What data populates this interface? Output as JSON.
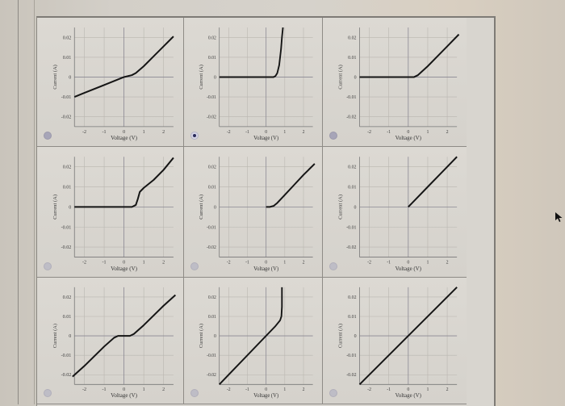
{
  "question": {
    "prompt": "",
    "option_count": 9,
    "selected_index": 1
  },
  "axes": {
    "xlabel": "Voltage (V)",
    "ylabel": "Current (A)",
    "xticks": [
      "-2",
      "-1",
      "0",
      "1",
      "2"
    ],
    "yticks": [
      "0.02",
      "0.01",
      "0",
      "-0.01",
      "-0.02"
    ]
  },
  "options": [
    {
      "index": 0,
      "selected": false,
      "description": "Ohmic negative branch, knee near 0.4V, steeper positive slope"
    },
    {
      "index": 1,
      "selected": true,
      "description": "Exponential diode, sharp rise at ~0.8V"
    },
    {
      "index": 2,
      "selected": false,
      "description": "Zero below ~0.4V, then linear"
    },
    {
      "index": 3,
      "selected": false,
      "description": "Zero until ~0.6V, S-bump, then linear"
    },
    {
      "index": 4,
      "selected": false,
      "description": "Starts at V=0, knee, then linear"
    },
    {
      "index": 5,
      "selected": false,
      "description": "Starts at V=0, straight line"
    },
    {
      "index": 6,
      "selected": false,
      "description": "Linear with flat plateau between -0.4V and 0.4V"
    },
    {
      "index": 7,
      "selected": false,
      "description": "Linear through origin, vertical at ~0.85V"
    },
    {
      "index": 8,
      "selected": false,
      "description": "Straight line through origin"
    }
  ],
  "chart_data": [
    {
      "type": "line",
      "title": "",
      "xlabel": "Voltage (V)",
      "ylabel": "Current (A)",
      "xlim": [
        -2.5,
        2.5
      ],
      "ylim": [
        -0.025,
        0.025
      ],
      "grid": true,
      "x": [
        -2.5,
        -2,
        -1,
        0,
        0.4,
        0.6,
        1,
        1.5,
        2,
        2.5
      ],
      "y": [
        -0.01,
        -0.008,
        -0.004,
        0,
        0.001,
        0.002,
        0.0055,
        0.0105,
        0.0155,
        0.0205
      ]
    },
    {
      "type": "line",
      "title": "",
      "xlabel": "Voltage (V)",
      "ylabel": "Current (A)",
      "xlim": [
        -2.5,
        2.5
      ],
      "ylim": [
        -0.025,
        0.025
      ],
      "grid": true,
      "x": [
        -2.5,
        -1,
        0,
        0.4,
        0.5,
        0.6,
        0.7,
        0.8,
        0.85,
        0.9
      ],
      "y": [
        0,
        0,
        0,
        0,
        0.0005,
        0.002,
        0.006,
        0.014,
        0.02,
        0.025
      ]
    },
    {
      "type": "line",
      "title": "",
      "xlabel": "Voltage (V)",
      "ylabel": "Current (A)",
      "xlim": [
        -2.5,
        2.5
      ],
      "ylim": [
        -0.025,
        0.025
      ],
      "grid": true,
      "x": [
        -2.5,
        -1,
        0,
        0.3,
        0.5,
        1,
        1.5,
        2,
        2.6
      ],
      "y": [
        0,
        0,
        0,
        0,
        0.001,
        0.0055,
        0.0105,
        0.0155,
        0.0215
      ]
    },
    {
      "type": "line",
      "title": "",
      "xlabel": "Voltage (V)",
      "ylabel": "Current (A)",
      "xlim": [
        -2.5,
        2.5
      ],
      "ylim": [
        -0.025,
        0.025
      ],
      "grid": true,
      "x": [
        -2.5,
        -1,
        0,
        0.4,
        0.6,
        0.7,
        0.8,
        1,
        1.5,
        2,
        2.5
      ],
      "y": [
        0,
        0,
        0,
        0,
        0.001,
        0.004,
        0.0075,
        0.0095,
        0.0135,
        0.0185,
        0.0245
      ]
    },
    {
      "type": "line",
      "title": "",
      "xlabel": "Voltage (V)",
      "ylabel": "Current (A)",
      "xlim": [
        -2.5,
        2.5
      ],
      "ylim": [
        -0.025,
        0.025
      ],
      "grid": true,
      "x": [
        0,
        0.2,
        0.4,
        0.6,
        1,
        1.5,
        2,
        2.6
      ],
      "y": [
        0,
        0,
        0.0005,
        0.002,
        0.006,
        0.011,
        0.016,
        0.0215
      ]
    },
    {
      "type": "line",
      "title": "",
      "xlabel": "Voltage (V)",
      "ylabel": "Current (A)",
      "xlim": [
        -2.5,
        2.5
      ],
      "ylim": [
        -0.025,
        0.025
      ],
      "grid": true,
      "x": [
        0,
        1,
        2,
        2.5
      ],
      "y": [
        0,
        0.01,
        0.02,
        0.025
      ]
    },
    {
      "type": "line",
      "title": "",
      "xlabel": "Voltage (V)",
      "ylabel": "Current (A)",
      "xlim": [
        -2.5,
        2.5
      ],
      "ylim": [
        -0.025,
        0.025
      ],
      "grid": true,
      "x": [
        -2.6,
        -2,
        -1,
        -0.5,
        -0.3,
        0,
        0.3,
        0.5,
        1,
        2,
        2.6
      ],
      "y": [
        -0.021,
        -0.0155,
        -0.0055,
        -0.001,
        0,
        0,
        0,
        0.001,
        0.0055,
        0.0155,
        0.021
      ]
    },
    {
      "type": "line",
      "title": "",
      "xlabel": "Voltage (V)",
      "ylabel": "Current (A)",
      "xlim": [
        -2.5,
        2.5
      ],
      "ylim": [
        -0.025,
        0.025
      ],
      "grid": true,
      "x": [
        -2.5,
        -2,
        -1,
        0,
        0.5,
        0.75,
        0.82,
        0.85,
        0.85
      ],
      "y": [
        -0.025,
        -0.02,
        -0.01,
        0,
        0.005,
        0.008,
        0.01,
        0.015,
        0.025
      ]
    },
    {
      "type": "line",
      "title": "",
      "xlabel": "Voltage (V)",
      "ylabel": "Current (A)",
      "xlim": [
        -2.5,
        2.5
      ],
      "ylim": [
        -0.025,
        0.025
      ],
      "grid": true,
      "x": [
        -2.5,
        0,
        2.5
      ],
      "y": [
        -0.025,
        0,
        0.025
      ]
    }
  ]
}
